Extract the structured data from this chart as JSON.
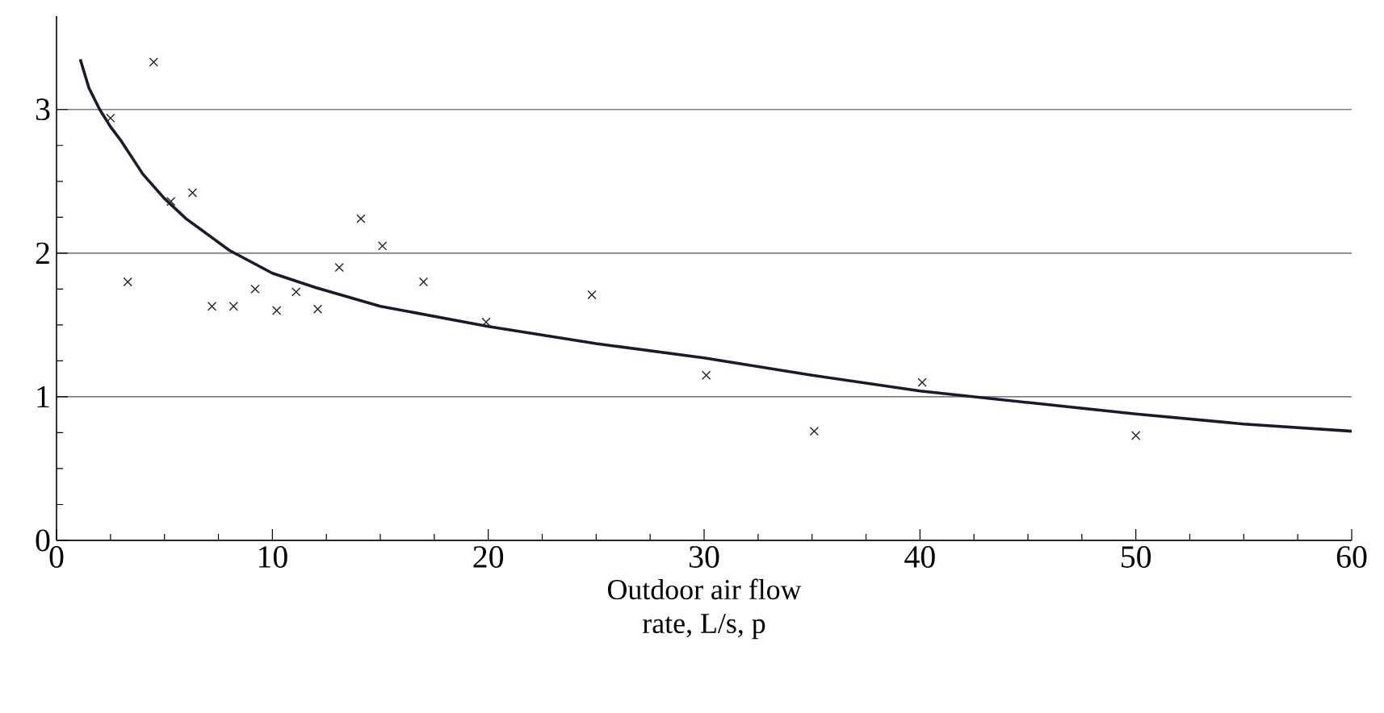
{
  "chart_data": {
    "type": "scatter",
    "xlabel": "Outdoor air flow\nrate, L/s, p",
    "xlim": [
      0,
      60
    ],
    "xticks": [
      0,
      10,
      20,
      30,
      40,
      50,
      60
    ],
    "ylim": [
      0,
      3.65
    ],
    "yticks": [
      0,
      1,
      2,
      3
    ],
    "grid": "y",
    "series": [
      {
        "color": "#222222",
        "marker": "cross",
        "x": [
          2.5,
          3.3,
          4.5,
          5.3,
          6.3,
          7.2,
          8.2,
          9.2,
          10.2,
          11.1,
          12.1,
          13.1,
          14.1,
          15.1,
          17.0,
          19.9,
          24.8,
          30.1,
          35.1,
          40.1,
          50.0
        ],
        "values": [
          2.94,
          1.8,
          3.33,
          2.36,
          2.42,
          1.63,
          1.63,
          1.75,
          1.6,
          1.73,
          1.61,
          1.9,
          2.24,
          2.05,
          1.8,
          1.52,
          1.71,
          1.15,
          0.76,
          1.1,
          0.73
        ]
      },
      {
        "type": "line",
        "color": "#1a1a2e",
        "marker": "none",
        "line_style": "solid",
        "x": [
          1.1,
          1.5,
          2,
          2.5,
          3,
          4,
          5,
          6,
          8,
          10,
          12,
          15,
          20,
          25,
          30,
          35,
          40,
          45,
          50,
          55,
          60
        ],
        "values": [
          3.35,
          3.15,
          3.0,
          2.88,
          2.78,
          2.55,
          2.38,
          2.24,
          2.02,
          1.86,
          1.76,
          1.63,
          1.49,
          1.37,
          1.27,
          1.15,
          1.04,
          0.96,
          0.88,
          0.81,
          0.76
        ]
      }
    ]
  }
}
